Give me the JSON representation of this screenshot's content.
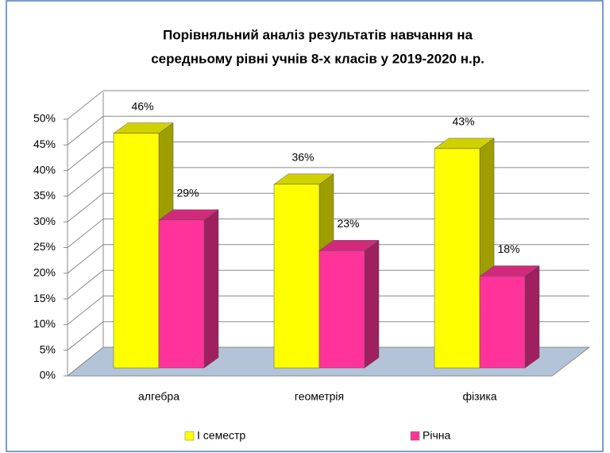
{
  "chart_data": {
    "type": "bar3d",
    "title": [
      "Порівняльний аналіз результатів навчання на",
      "середньому рівні учнів 8-х класів у 2019-2020 н.р."
    ],
    "categories": [
      "алгебра",
      "геометрія",
      "фізика"
    ],
    "series": [
      {
        "name": "І семестр",
        "color": "#ffff00",
        "values": [
          46,
          36,
          43
        ],
        "value_labels": [
          "46%",
          "36%",
          "43%"
        ]
      },
      {
        "name": "Річна",
        "color": "#ff3399",
        "values": [
          29,
          23,
          18
        ],
        "value_labels": [
          "29%",
          "23%",
          "18%"
        ]
      }
    ],
    "ylim": [
      0,
      50
    ],
    "yticks": [
      {
        "value": 0,
        "label": "0%"
      },
      {
        "value": 5,
        "label": "5%"
      },
      {
        "value": 10,
        "label": "10%"
      },
      {
        "value": 15,
        "label": "15%"
      },
      {
        "value": 20,
        "label": "20%"
      },
      {
        "value": 25,
        "label": "25%"
      },
      {
        "value": 30,
        "label": "30%"
      },
      {
        "value": 35,
        "label": "35%"
      },
      {
        "value": 40,
        "label": "40%"
      },
      {
        "value": 45,
        "label": "45%"
      },
      {
        "value": 50,
        "label": "50%"
      }
    ],
    "grid": true,
    "legend": "bottom"
  }
}
